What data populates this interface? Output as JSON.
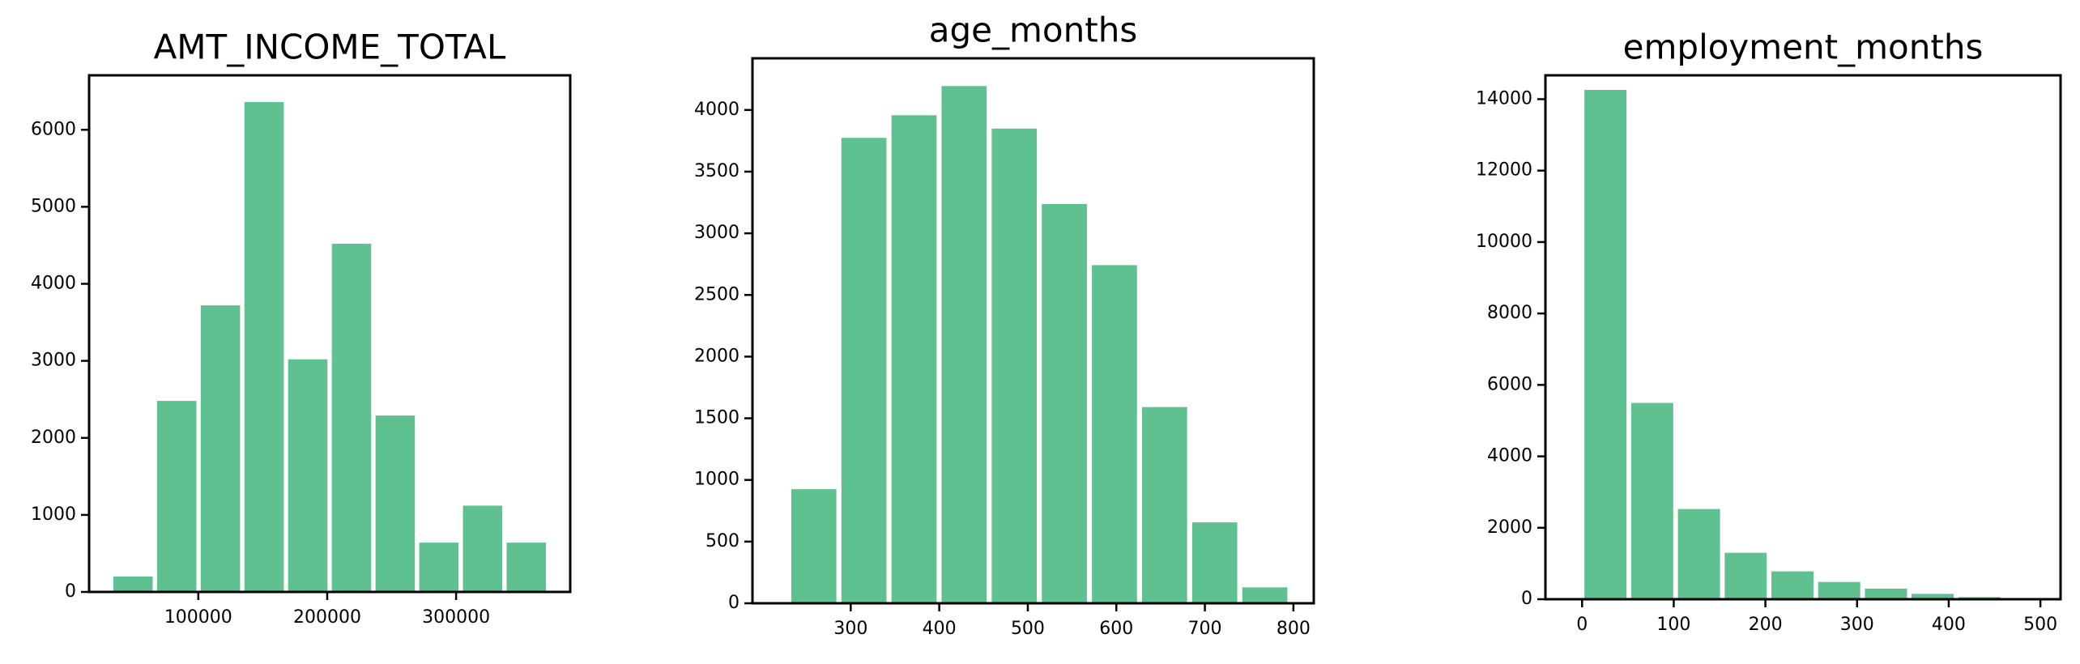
{
  "chart_data": [
    {
      "type": "histogram",
      "title": "AMT_INCOME_TOTAL",
      "color": "#5fc18f",
      "bins": [
        32400,
        66300,
        100200,
        134100,
        168000,
        201900,
        235800,
        269700,
        303600,
        337500,
        371400
      ],
      "values": [
        200,
        2480,
        3720,
        6360,
        3020,
        4520,
        2290,
        640,
        1120,
        640
      ],
      "xlim": [
        15300,
        388500
      ],
      "ylim": [
        0,
        6707
      ],
      "xticks": [
        100000,
        200000,
        300000
      ],
      "yticks": [
        0,
        1000,
        2000,
        3000,
        4000,
        5000,
        6000
      ]
    },
    {
      "type": "histogram",
      "title": "age_months",
      "color": "#5fc18f",
      "bins": [
        230,
        286.6,
        343.2,
        399.8,
        456.4,
        513,
        569.6,
        626.2,
        682.8,
        739.4,
        796
      ],
      "values": [
        925,
        3774,
        3957,
        4194,
        3849,
        3237,
        2742,
        1591,
        656,
        129
      ],
      "xlim": [
        189,
        823
      ],
      "ylim": [
        0,
        4419
      ],
      "xticks": [
        300,
        400,
        500,
        600,
        700,
        800
      ],
      "yticks": [
        0,
        500,
        1000,
        1500,
        2000,
        2500,
        3000,
        3500,
        4000
      ]
    },
    {
      "type": "histogram",
      "title": "employment_months",
      "color": "#5fc18f",
      "bins": [
        0,
        51,
        102,
        153,
        204,
        255,
        306,
        357,
        408,
        459,
        510
      ],
      "values": [
        14260,
        5496,
        2525,
        1300,
        780,
        483,
        297,
        150,
        60,
        30
      ],
      "xlim": [
        -40,
        522
      ],
      "ylim": [
        0,
        14668
      ],
      "xticks": [
        0,
        100,
        200,
        300,
        400,
        500
      ],
      "yticks": [
        0,
        2000,
        4000,
        6000,
        8000,
        10000,
        12000,
        14000
      ]
    }
  ]
}
